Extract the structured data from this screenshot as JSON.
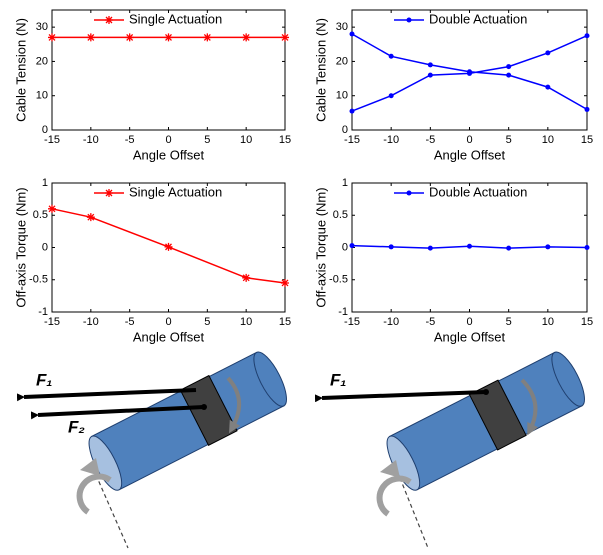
{
  "chart_data": [
    {
      "type": "line",
      "xlabel": "Angle Offset",
      "ylabel": "Cable Tension (N)",
      "x": [
        -15,
        -10,
        -5,
        0,
        5,
        10,
        15
      ],
      "xlim": [
        -15,
        15
      ],
      "xticks": [
        -15,
        -10,
        -5,
        0,
        5,
        10,
        15
      ],
      "ylim": [
        0,
        35
      ],
      "yticks": [
        0,
        10,
        20,
        30
      ],
      "series": [
        {
          "name": "Single Actuation",
          "color": "#ff0000",
          "marker": "star",
          "values": [
            27,
            27,
            27,
            27,
            27,
            27,
            27
          ]
        }
      ]
    },
    {
      "type": "line",
      "xlabel": "Angle Offset",
      "ylabel": "Cable Tension (N)",
      "x": [
        -15,
        -10,
        -5,
        0,
        5,
        10,
        15
      ],
      "xlim": [
        -15,
        15
      ],
      "xticks": [
        -15,
        -10,
        -5,
        0,
        5,
        10,
        15
      ],
      "ylim": [
        0,
        35
      ],
      "yticks": [
        0,
        10,
        20,
        30
      ],
      "series": [
        {
          "name": "Double Actuation",
          "color": "#0000ff",
          "marker": "dot",
          "values": [
            28,
            21.5,
            19,
            17,
            16,
            12.5,
            6
          ]
        },
        {
          "name": null,
          "color": "#0000ff",
          "marker": "dot",
          "values": [
            5.5,
            10,
            16,
            16.5,
            18.5,
            22.5,
            27.5
          ]
        }
      ]
    },
    {
      "type": "line",
      "xlabel": "Angle Offset",
      "ylabel": "Off-axis Torque (Nm)",
      "x": [
        -15,
        -10,
        0,
        10,
        15
      ],
      "xlim": [
        -15,
        15
      ],
      "xticks": [
        -15,
        -10,
        -5,
        0,
        5,
        10,
        15
      ],
      "ylim": [
        -1,
        1
      ],
      "yticks": [
        -1,
        -0.5,
        0,
        0.5,
        1
      ],
      "series": [
        {
          "name": "Single Actuation",
          "color": "#ff0000",
          "marker": "star",
          "values": [
            0.6,
            0.47,
            0.01,
            -0.47,
            -0.55
          ]
        }
      ]
    },
    {
      "type": "line",
      "xlabel": "Angle Offset",
      "ylabel": "Off-axis Torque (Nm)",
      "x": [
        -15,
        -10,
        -5,
        0,
        5,
        10,
        15
      ],
      "xlim": [
        -15,
        15
      ],
      "xticks": [
        -15,
        -10,
        -5,
        0,
        5,
        10,
        15
      ],
      "ylim": [
        -1,
        1
      ],
      "yticks": [
        -1,
        -0.5,
        0,
        0.5,
        1
      ],
      "series": [
        {
          "name": "Double Actuation",
          "color": "#0000ff",
          "marker": "dot",
          "values": [
            0.03,
            0.01,
            -0.01,
            0.02,
            -0.01,
            0.01,
            0
          ]
        }
      ]
    }
  ],
  "diagrams": [
    {
      "labels": [
        "F₁",
        "F₂"
      ]
    },
    {
      "labels": [
        "F₁"
      ]
    }
  ]
}
